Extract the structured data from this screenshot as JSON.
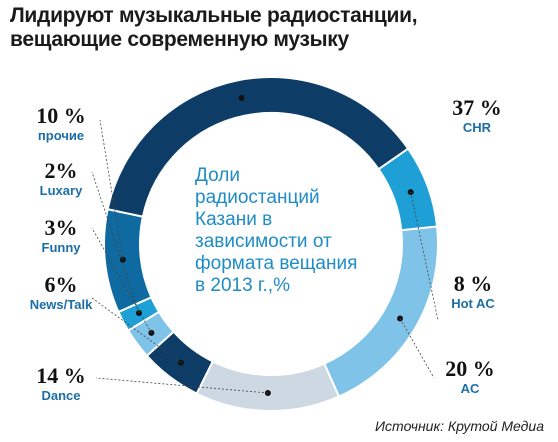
{
  "title_lines": [
    "Лидируют музыкальные радиостанции,",
    "вещающие современную музыку"
  ],
  "center_lines": [
    "Доли",
    "радиостанций",
    "Казани в",
    "зависимости от",
    "формата вещания",
    "в 2013 г.,%"
  ],
  "source": "Источник: Крутой Медиа",
  "chart_data": {
    "type": "pie",
    "donut": true,
    "categories": [
      "CHR",
      "Hot AC",
      "AC",
      "Dance",
      "News/Talk",
      "Funny",
      "Luxary",
      "прочие"
    ],
    "values": [
      37,
      8,
      20,
      14,
      6,
      3,
      2,
      10
    ],
    "value_labels": [
      "37 %",
      "8 %",
      "20 %",
      "14 %",
      "6%",
      "3%",
      "2%",
      "10 %"
    ],
    "colors": [
      "#0d3d66",
      "#1e9fd6",
      "#80c3e9",
      "#cdd8e3",
      "#0d3d66",
      "#80c3e9",
      "#1e9fd6",
      "#0e6aa0"
    ],
    "legend": "none",
    "grid": false
  }
}
